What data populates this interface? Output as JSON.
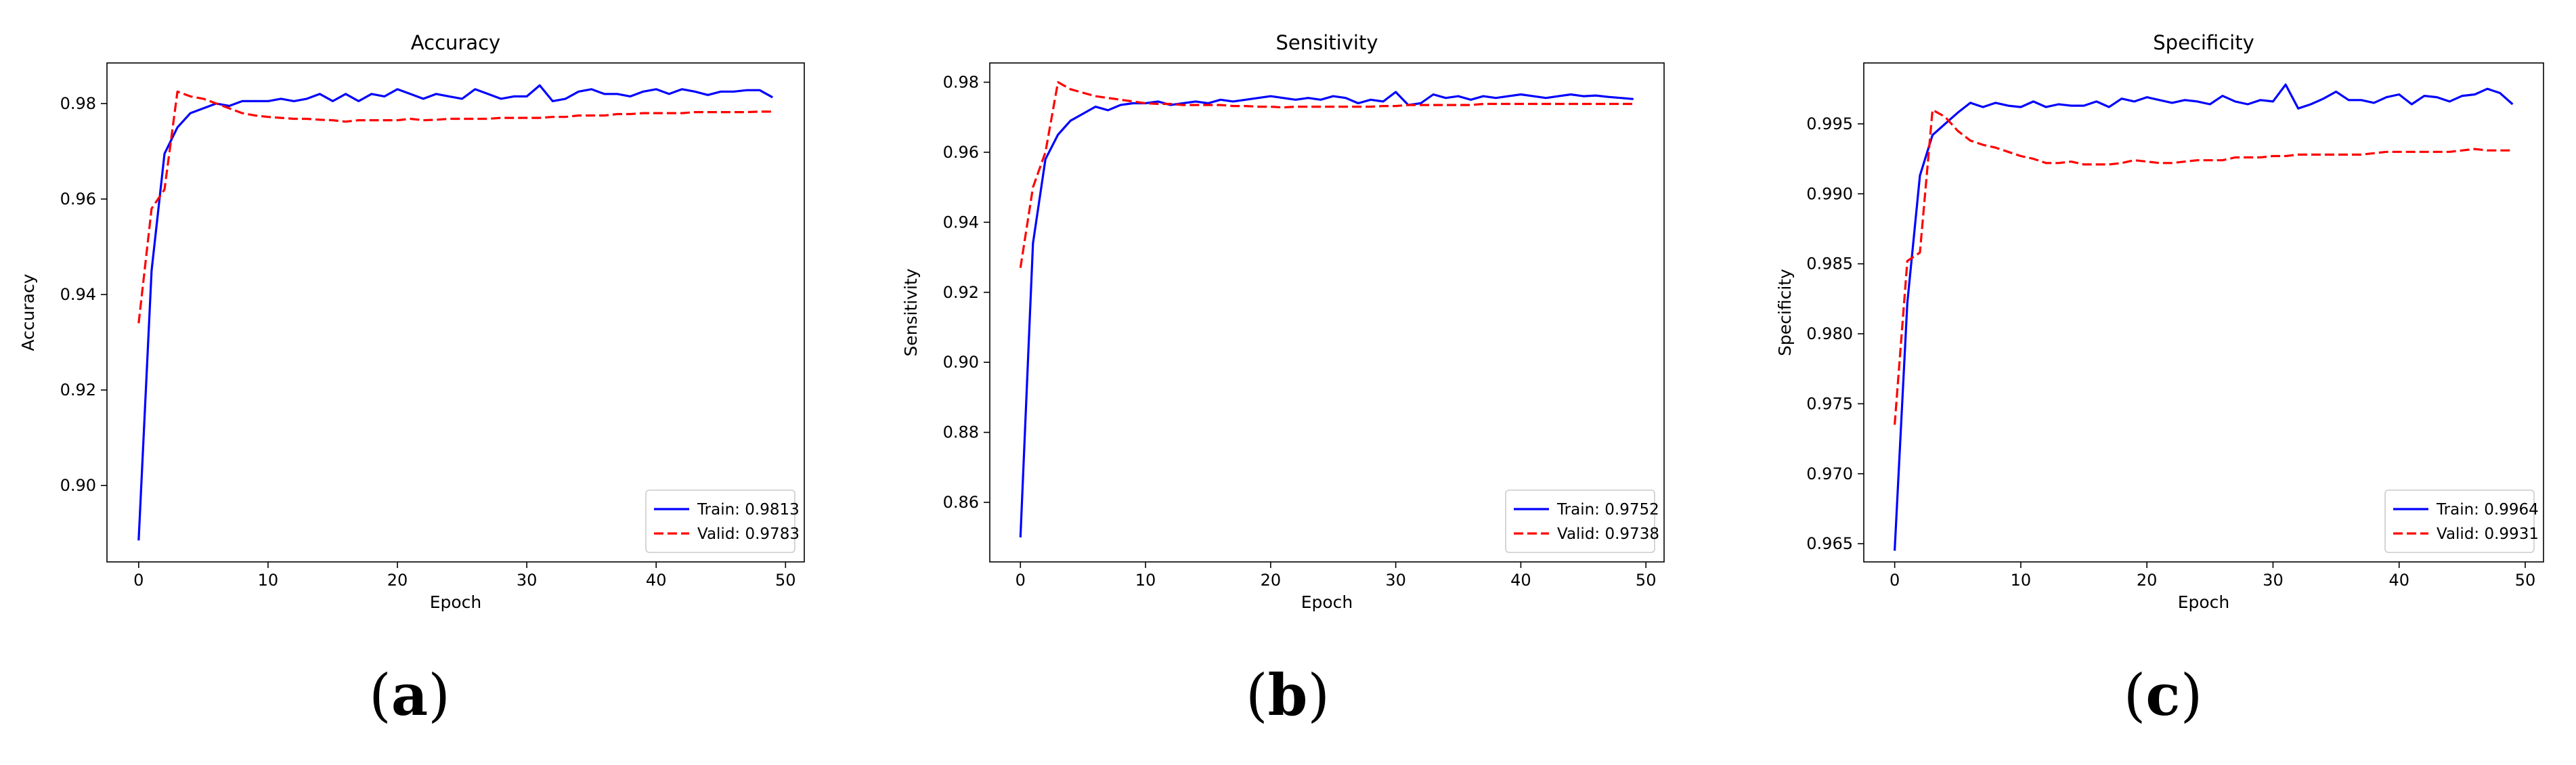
{
  "chart_data": [
    {
      "type": "line",
      "title": "Accuracy",
      "xlabel": "Epoch",
      "ylabel": "Accuracy",
      "xlim": [
        -2.45,
        51.45
      ],
      "ylim": [
        0.884,
        0.9885
      ],
      "xticks": [
        0,
        10,
        20,
        30,
        40,
        50
      ],
      "xtick_labels": [
        "0",
        "10",
        "20",
        "30",
        "40",
        "50"
      ],
      "yticks": [
        0.9,
        0.92,
        0.94,
        0.96,
        0.98
      ],
      "ytick_labels": [
        "0.90",
        "0.92",
        "0.94",
        "0.96",
        "0.98"
      ],
      "grid": false,
      "legend_position": "lower-right",
      "caption": "a",
      "series": [
        {
          "name": "Train: 0.9813",
          "color": "#0000ff",
          "style": "solid",
          "x": [
            0,
            1,
            2,
            3,
            4,
            5,
            6,
            7,
            8,
            9,
            10,
            11,
            12,
            13,
            14,
            15,
            16,
            17,
            18,
            19,
            20,
            21,
            22,
            23,
            24,
            25,
            26,
            27,
            28,
            29,
            30,
            31,
            32,
            33,
            34,
            35,
            36,
            37,
            38,
            39,
            40,
            41,
            42,
            43,
            44,
            45,
            46,
            47,
            48,
            49
          ],
          "y": [
            0.8885,
            0.945,
            0.9695,
            0.975,
            0.978,
            0.979,
            0.98,
            0.9795,
            0.9805,
            0.9805,
            0.9805,
            0.981,
            0.9805,
            0.981,
            0.982,
            0.9805,
            0.982,
            0.9805,
            0.982,
            0.9815,
            0.983,
            0.982,
            0.981,
            0.982,
            0.9815,
            0.981,
            0.983,
            0.982,
            0.981,
            0.9815,
            0.9815,
            0.9838,
            0.9805,
            0.981,
            0.9825,
            0.983,
            0.982,
            0.982,
            0.9815,
            0.9825,
            0.983,
            0.982,
            0.983,
            0.9825,
            0.9818,
            0.9825,
            0.9825,
            0.9828,
            0.9828,
            0.9813
          ]
        },
        {
          "name": "Valid: 0.9783",
          "color": "#ff0000",
          "style": "dashed",
          "x": [
            0,
            1,
            2,
            3,
            4,
            5,
            6,
            7,
            8,
            9,
            10,
            11,
            12,
            13,
            14,
            15,
            16,
            17,
            18,
            19,
            20,
            21,
            22,
            23,
            24,
            25,
            26,
            27,
            28,
            29,
            30,
            31,
            32,
            33,
            34,
            35,
            36,
            37,
            38,
            39,
            40,
            41,
            42,
            43,
            44,
            45,
            46,
            47,
            48,
            49
          ],
          "y": [
            0.934,
            0.958,
            0.962,
            0.9825,
            0.9815,
            0.981,
            0.98,
            0.979,
            0.978,
            0.9775,
            0.9772,
            0.977,
            0.9768,
            0.9768,
            0.9766,
            0.9765,
            0.9762,
            0.9765,
            0.9765,
            0.9765,
            0.9765,
            0.9768,
            0.9765,
            0.9766,
            0.9768,
            0.9768,
            0.9768,
            0.9768,
            0.977,
            0.977,
            0.977,
            0.977,
            0.9772,
            0.9772,
            0.9775,
            0.9775,
            0.9775,
            0.9778,
            0.9778,
            0.978,
            0.978,
            0.978,
            0.978,
            0.9782,
            0.9782,
            0.9782,
            0.9782,
            0.9782,
            0.9783,
            0.9783
          ]
        }
      ]
    },
    {
      "type": "line",
      "title": "Sensitivity",
      "xlabel": "Epoch",
      "ylabel": "Sensitivity",
      "xlim": [
        -2.45,
        51.45
      ],
      "ylim": [
        0.843,
        0.9855
      ],
      "xticks": [
        0,
        10,
        20,
        30,
        40,
        50
      ],
      "xtick_labels": [
        "0",
        "10",
        "20",
        "30",
        "40",
        "50"
      ],
      "yticks": [
        0.86,
        0.88,
        0.9,
        0.92,
        0.94,
        0.96,
        0.98
      ],
      "ytick_labels": [
        "0.86",
        "0.88",
        "0.90",
        "0.92",
        "0.94",
        "0.96",
        "0.98"
      ],
      "grid": false,
      "legend_position": "lower-right",
      "caption": "b",
      "series": [
        {
          "name": "Train: 0.9752",
          "color": "#0000ff",
          "style": "solid",
          "x": [
            0,
            1,
            2,
            3,
            4,
            5,
            6,
            7,
            8,
            9,
            10,
            11,
            12,
            13,
            14,
            15,
            16,
            17,
            18,
            19,
            20,
            21,
            22,
            23,
            24,
            25,
            26,
            27,
            28,
            29,
            30,
            31,
            32,
            33,
            34,
            35,
            36,
            37,
            38,
            39,
            40,
            41,
            42,
            43,
            44,
            45,
            46,
            47,
            48,
            49
          ],
          "y": [
            0.85,
            0.934,
            0.958,
            0.965,
            0.969,
            0.971,
            0.973,
            0.972,
            0.9735,
            0.974,
            0.974,
            0.9745,
            0.9735,
            0.974,
            0.9745,
            0.974,
            0.975,
            0.9745,
            0.975,
            0.9755,
            0.976,
            0.9755,
            0.975,
            0.9755,
            0.975,
            0.976,
            0.9755,
            0.974,
            0.975,
            0.9745,
            0.9772,
            0.9735,
            0.974,
            0.9765,
            0.9755,
            0.976,
            0.975,
            0.976,
            0.9755,
            0.976,
            0.9765,
            0.976,
            0.9755,
            0.976,
            0.9765,
            0.976,
            0.9762,
            0.9758,
            0.9755,
            0.9752
          ]
        },
        {
          "name": "Valid: 0.9738",
          "color": "#ff0000",
          "style": "dashed",
          "x": [
            0,
            1,
            2,
            3,
            4,
            5,
            6,
            7,
            8,
            9,
            10,
            11,
            12,
            13,
            14,
            15,
            16,
            17,
            18,
            19,
            20,
            21,
            22,
            23,
            24,
            25,
            26,
            27,
            28,
            29,
            30,
            31,
            32,
            33,
            34,
            35,
            36,
            37,
            38,
            39,
            40,
            41,
            42,
            43,
            44,
            45,
            46,
            47,
            48,
            49
          ],
          "y": [
            0.927,
            0.95,
            0.96,
            0.98,
            0.978,
            0.977,
            0.976,
            0.9755,
            0.975,
            0.9745,
            0.974,
            0.9738,
            0.9738,
            0.9735,
            0.9735,
            0.9735,
            0.9735,
            0.9732,
            0.9732,
            0.973,
            0.973,
            0.9728,
            0.973,
            0.973,
            0.973,
            0.973,
            0.973,
            0.973,
            0.973,
            0.9732,
            0.9732,
            0.9735,
            0.9735,
            0.9735,
            0.9735,
            0.9735,
            0.9735,
            0.9738,
            0.9738,
            0.9738,
            0.9738,
            0.9738,
            0.9738,
            0.9738,
            0.9738,
            0.9738,
            0.9738,
            0.9738,
            0.9738,
            0.9738
          ]
        }
      ]
    },
    {
      "type": "line",
      "title": "Specificity",
      "xlabel": "Epoch",
      "ylabel": "Specificity",
      "xlim": [
        -2.45,
        51.45
      ],
      "ylim": [
        0.9637,
        0.99935
      ],
      "xticks": [
        0,
        10,
        20,
        30,
        40,
        50
      ],
      "xtick_labels": [
        "0",
        "10",
        "20",
        "30",
        "40",
        "50"
      ],
      "yticks": [
        0.965,
        0.97,
        0.975,
        0.98,
        0.985,
        0.99,
        0.995
      ],
      "ytick_labels": [
        "0.965",
        "0.970",
        "0.975",
        "0.980",
        "0.985",
        "0.990",
        "0.995"
      ],
      "grid": false,
      "legend_position": "lower-right",
      "caption": "c",
      "series": [
        {
          "name": "Train: 0.9964",
          "color": "#0000ff",
          "style": "solid",
          "x": [
            0,
            1,
            2,
            3,
            4,
            5,
            6,
            7,
            8,
            9,
            10,
            11,
            12,
            13,
            14,
            15,
            16,
            17,
            18,
            19,
            20,
            21,
            22,
            23,
            24,
            25,
            26,
            27,
            28,
            29,
            30,
            31,
            32,
            33,
            34,
            35,
            36,
            37,
            38,
            39,
            40,
            41,
            42,
            43,
            44,
            45,
            46,
            47,
            48,
            49
          ],
          "y": [
            0.9645,
            0.9822,
            0.9913,
            0.9942,
            0.995,
            0.9958,
            0.9965,
            0.9962,
            0.9965,
            0.9963,
            0.9962,
            0.9966,
            0.9962,
            0.9964,
            0.9963,
            0.9963,
            0.9966,
            0.9962,
            0.9968,
            0.9966,
            0.9969,
            0.9967,
            0.9965,
            0.9967,
            0.9966,
            0.9964,
            0.997,
            0.9966,
            0.9964,
            0.9967,
            0.9966,
            0.9978,
            0.9961,
            0.9964,
            0.9968,
            0.9973,
            0.9967,
            0.9967,
            0.9965,
            0.9969,
            0.9971,
            0.9964,
            0.997,
            0.9969,
            0.9966,
            0.997,
            0.9971,
            0.9975,
            0.9972,
            0.9964
          ]
        },
        {
          "name": "Valid: 0.9931",
          "color": "#ff0000",
          "style": "dashed",
          "x": [
            0,
            1,
            2,
            3,
            4,
            5,
            6,
            7,
            8,
            9,
            10,
            11,
            12,
            13,
            14,
            15,
            16,
            17,
            18,
            19,
            20,
            21,
            22,
            23,
            24,
            25,
            26,
            27,
            28,
            29,
            30,
            31,
            32,
            33,
            34,
            35,
            36,
            37,
            38,
            39,
            40,
            41,
            42,
            43,
            44,
            45,
            46,
            47,
            48,
            49
          ],
          "y": [
            0.9735,
            0.9852,
            0.9858,
            0.996,
            0.9955,
            0.9945,
            0.9938,
            0.9935,
            0.9933,
            0.993,
            0.9927,
            0.9925,
            0.9922,
            0.9922,
            0.9923,
            0.9921,
            0.9921,
            0.9921,
            0.9922,
            0.9924,
            0.9923,
            0.9922,
            0.9922,
            0.9923,
            0.9924,
            0.9924,
            0.9924,
            0.9926,
            0.9926,
            0.9926,
            0.9927,
            0.9927,
            0.9928,
            0.9928,
            0.9928,
            0.9928,
            0.9928,
            0.9928,
            0.9929,
            0.993,
            0.993,
            0.993,
            0.993,
            0.993,
            0.993,
            0.9931,
            0.9932,
            0.9931,
            0.9931,
            0.9931
          ]
        }
      ]
    }
  ]
}
